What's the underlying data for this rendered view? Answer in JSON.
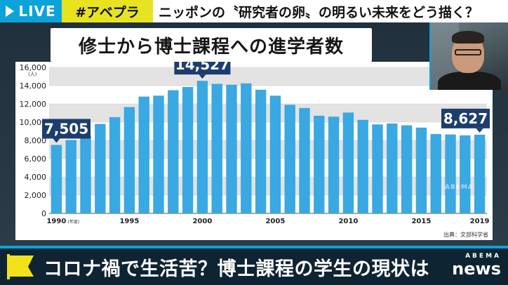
{
  "ticker": {
    "live_label": "LIVE",
    "hashtag": "#アベプラ",
    "headline": "ニッポンの〝研究者の卵〟の明るい未来をどう描く？"
  },
  "chart_title": "修士から博士課程への進学者数",
  "chart_data": {
    "type": "bar",
    "title": "修士から博士課程への進学者数",
    "categories": [
      "1990",
      "1991",
      "1992",
      "1993",
      "1994",
      "1995",
      "1996",
      "1997",
      "1998",
      "1999",
      "2000",
      "2001",
      "2002",
      "2003",
      "2004",
      "2005",
      "2006",
      "2007",
      "2008",
      "2009",
      "2010",
      "2011",
      "2012",
      "2013",
      "2014",
      "2015",
      "2016",
      "2017",
      "2018",
      "2019"
    ],
    "values": [
      7505,
      8050,
      8530,
      9800,
      10550,
      11650,
      12800,
      12900,
      13500,
      13850,
      14527,
      14200,
      14100,
      14250,
      13550,
      12900,
      11900,
      11550,
      10700,
      10600,
      11050,
      10250,
      9750,
      9850,
      9650,
      9400,
      8700,
      8650,
      8550,
      8627
    ],
    "ylim": [
      0,
      16000
    ],
    "yticks": [
      0,
      2000,
      4000,
      6000,
      8000,
      10000,
      12000,
      14000,
      16000
    ],
    "ytick_labels": [
      "0",
      "2,000",
      "4,000",
      "6,000",
      "8,000",
      "10,000",
      "12,000",
      "14,000",
      "16,000"
    ],
    "y_unit": "(人)",
    "xtick_labels": [
      {
        "category": "1990",
        "label": "1990"
      },
      {
        "category": "1995",
        "label": "1995"
      },
      {
        "category": "2000",
        "label": "2000"
      },
      {
        "category": "2005",
        "label": "2005"
      },
      {
        "category": "2010",
        "label": "2010"
      },
      {
        "category": "2015",
        "label": "2015"
      },
      {
        "category": "2019",
        "label": "2019"
      }
    ],
    "x_unit": "(年度)",
    "callouts": [
      {
        "category": "1990",
        "label": "7,505"
      },
      {
        "category": "2000",
        "label": "14,527"
      },
      {
        "category": "2019",
        "label": "8,627"
      }
    ],
    "grid": true,
    "bar_color": "#3aa8e2",
    "band_color": "#e3e3e3",
    "callout_color": "#1c3d6e",
    "source": "出典：文部科学省"
  },
  "lower_third": {
    "caption": "コロナ禍で生活苦？博士課程の学生の現状は",
    "logo_small": "ABEMA",
    "logo_big": "news"
  },
  "watermark": "ABEMA"
}
